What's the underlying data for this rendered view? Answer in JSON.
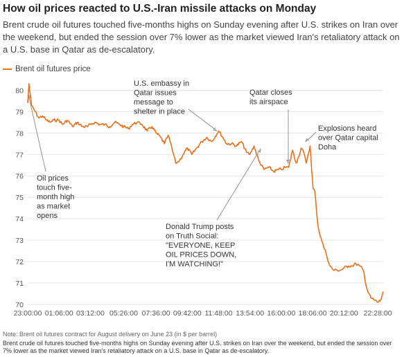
{
  "title": "How oil prices reacted to U.S.-Iran missile attacks on Monday",
  "subtitle": "Brent crude oil futures touched five-months highs on Sunday evening after U.S. strikes on Iran over the weekend, but ended the session over 7% lower as the market viewed Iran's retaliatory attack on a U.S. base in Qatar as de-escalatory.",
  "note": "Note: Brent oil futures contract for August delivery on June 23 (in $ per barrel)",
  "caption": "Brent crude oil futures touched five-months highs on Sunday evening after U.S. strikes on Iran over the weekend, but ended the session over 7% lower as the market viewed Iran's retaliatory attack on a U.S. base in Qatar as de-escalatory.",
  "colors": {
    "line": "#e8701a",
    "grid": "#e3e3e3",
    "leader": "#888888"
  },
  "chart_data": {
    "type": "line",
    "series": [
      {
        "name": "Brent oil futures price",
        "x": [
          "23:00:00",
          "23:05:00",
          "23:15:00",
          "23:30:00",
          "23:45:00",
          "00:00:00",
          "00:15:00",
          "00:30:00",
          "00:45:00",
          "01:06:00",
          "01:20:00",
          "01:40:00",
          "02:00:00",
          "02:20:00",
          "02:40:00",
          "03:00:00",
          "03:12:00",
          "03:30:00",
          "03:50:00",
          "04:10:00",
          "04:30:00",
          "04:50:00",
          "05:10:00",
          "05:26:00",
          "05:45:00",
          "06:00:00",
          "06:20:00",
          "06:40:00",
          "07:00:00",
          "07:20:00",
          "07:36:00",
          "07:55:00",
          "08:10:00",
          "08:25:00",
          "08:40:00",
          "08:55:00",
          "09:10:00",
          "09:25:00",
          "09:42:00",
          "10:00:00",
          "10:20:00",
          "10:40:00",
          "11:00:00",
          "11:20:00",
          "11:48:00",
          "12:05:00",
          "12:20:00",
          "12:40:00",
          "13:00:00",
          "13:20:00",
          "13:40:00",
          "13:54:00",
          "14:10:00",
          "14:30:00",
          "14:50:00",
          "15:10:00",
          "15:30:00",
          "15:50:00",
          "16:00:00",
          "16:15:00",
          "16:30:00",
          "16:45:00",
          "17:00:00",
          "17:10:00",
          "17:20:00",
          "17:30:00",
          "17:40:00",
          "17:50:00",
          "17:56:00",
          "18:02:00",
          "18:08:00",
          "18:15:00",
          "18:22:00",
          "18:30:00",
          "18:40:00",
          "18:50:00",
          "19:00:00",
          "19:15:00",
          "19:30:00",
          "19:45:00",
          "20:00:00",
          "20:12:00",
          "20:30:00",
          "20:45:00",
          "21:00:00",
          "21:15:00",
          "21:30:00",
          "21:45:00",
          "22:00:00",
          "22:15:00",
          "22:28:00",
          "22:40:00",
          "22:50:00"
        ],
        "values": [
          79.4,
          80.3,
          79.3,
          79.0,
          78.7,
          78.8,
          78.6,
          78.5,
          78.6,
          78.6,
          78.4,
          78.6,
          78.3,
          78.5,
          78.3,
          78.3,
          78.4,
          78.5,
          78.4,
          78.4,
          78.3,
          78.5,
          78.4,
          78.3,
          78.2,
          78.4,
          78.5,
          78.4,
          78.1,
          78.3,
          78.0,
          77.8,
          77.5,
          77.9,
          77.3,
          76.6,
          76.7,
          77.0,
          77.3,
          77.0,
          77.3,
          77.6,
          77.8,
          77.6,
          78.1,
          77.8,
          77.5,
          77.5,
          77.4,
          77.6,
          77.1,
          77.0,
          77.4,
          76.7,
          76.3,
          76.4,
          76.2,
          76.3,
          76.3,
          76.4,
          76.4,
          77.2,
          76.6,
          76.9,
          77.3,
          77.1,
          76.6,
          77.1,
          77.4,
          76.3,
          75.4,
          75.3,
          74.3,
          73.5,
          73.1,
          72.7,
          72.4,
          71.8,
          71.6,
          71.6,
          71.6,
          71.7,
          71.8,
          71.8,
          71.9,
          71.8,
          71.6,
          70.7,
          70.3,
          70.2,
          70.1,
          70.2,
          70.6
        ]
      }
    ],
    "xticks": [
      "23:00:00",
      "01:06:00",
      "03:12:00",
      "05:26:00",
      "07:36:00",
      "09:42:00",
      "11:48:00",
      "13:54:00",
      "16:00:00",
      "18:06:00",
      "20:12:00",
      "22:28:00"
    ],
    "yticks": [
      70,
      71,
      72,
      73,
      74,
      75,
      76,
      77,
      78,
      79,
      80
    ],
    "ylim": [
      70,
      80.4
    ],
    "grid": "horizontal",
    "legend_position": "top-left",
    "annotations": [
      {
        "id": "oil",
        "lines": [
          "Oil prices",
          "touch five-",
          "month high",
          "as market",
          "opens"
        ]
      },
      {
        "id": "embassy",
        "lines": [
          "U.S. embassy in",
          "Qatar issues",
          "message to",
          "shelter in place"
        ]
      },
      {
        "id": "airspace",
        "lines": [
          "Qatar closes",
          "its airspace"
        ]
      },
      {
        "id": "explosions",
        "lines": [
          "Explosions heard",
          "over Qatar capital",
          "Doha"
        ]
      },
      {
        "id": "trump",
        "lines": [
          "Donald Trump posts",
          "on Truth Social:",
          "\"EVERYONE, KEEP",
          "OIL PRICES DOWN,",
          "I'M WATCHING!\""
        ]
      }
    ]
  }
}
